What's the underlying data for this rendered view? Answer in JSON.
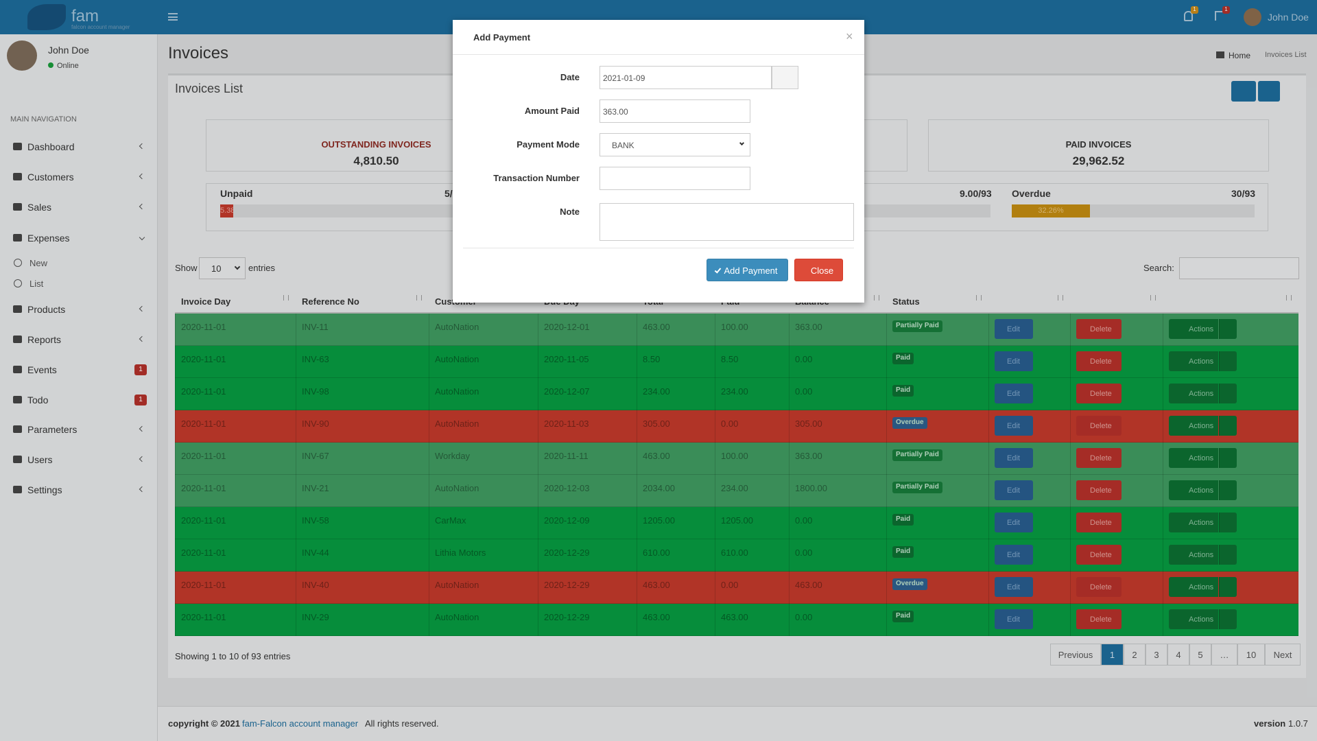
{
  "header": {
    "brand": "fam",
    "brand_sub": "falcon account manager",
    "notifications": "1",
    "flags": "1",
    "user": "John Doe"
  },
  "sidebar": {
    "user": "John Doe",
    "status": "Online",
    "section": "MAIN NAVIGATION",
    "items": [
      {
        "label": "Dashboard"
      },
      {
        "label": "Customers"
      },
      {
        "label": "Sales"
      },
      {
        "label": "Expenses",
        "children": [
          "New",
          "List"
        ]
      },
      {
        "label": "Products"
      },
      {
        "label": "Reports"
      },
      {
        "label": "Events",
        "badge": "1"
      },
      {
        "label": "Todo",
        "badge": "1"
      },
      {
        "label": "Parameters"
      },
      {
        "label": "Users"
      },
      {
        "label": "Settings"
      }
    ]
  },
  "page": {
    "title": "Invoices",
    "breadcrumb": [
      "Home",
      "Invoices List"
    ],
    "box_title": "Invoices List"
  },
  "stats": [
    {
      "label": "OUTSTANDING INVOICES",
      "value": "4,810.50",
      "color": "#8a2a22"
    },
    {
      "label": "PAID INVOICES",
      "value": "29,962.52",
      "color": "#333333"
    }
  ],
  "progress": [
    {
      "label": "Unpaid",
      "count": "5/",
      "bar": "5.38",
      "color": "#c0392b"
    },
    {
      "count": "9.00/93"
    },
    {
      "label": "Overdue",
      "count": "30/93",
      "bar": "32.26%",
      "color": "#c08a12"
    }
  ],
  "table_controls": {
    "show": "Show",
    "length": "10",
    "entries": "entries",
    "search": "Search:"
  },
  "table": {
    "headers": [
      "Invoice Day",
      "Reference No",
      "Customer",
      "Due Day",
      "Total",
      "Paid",
      "Balance",
      "Status"
    ],
    "buttons": {
      "edit": "Edit",
      "delete": "Delete",
      "actions": "Actions"
    },
    "rows": [
      {
        "color": "#3f9a60",
        "badge_color": "#177a3a",
        "cells": [
          "2020-11-01",
          "INV-11",
          "AutoNation",
          "2020-12-01",
          "463.00",
          "100.00",
          "363.00",
          "Partially Paid"
        ]
      },
      {
        "color": "#079a40",
        "badge_color": "#0d6e31",
        "cells": [
          "2020-11-01",
          "INV-63",
          "AutoNation",
          "2020-11-05",
          "8.50",
          "8.50",
          "0.00",
          "Paid"
        ]
      },
      {
        "color": "#079a40",
        "badge_color": "#0d6e31",
        "cells": [
          "2020-11-01",
          "INV-98",
          "AutoNation",
          "2020-12-07",
          "234.00",
          "234.00",
          "0.00",
          "Paid"
        ]
      },
      {
        "color": "#c0392b",
        "badge_color": "#2d5f8c",
        "cells": [
          "2020-11-01",
          "INV-90",
          "AutoNation",
          "2020-11-03",
          "305.00",
          "0.00",
          "305.00",
          "Overdue"
        ]
      },
      {
        "color": "#3f9a60",
        "badge_color": "#177a3a",
        "cells": [
          "2020-11-01",
          "INV-67",
          "Workday",
          "2020-11-11",
          "463.00",
          "100.00",
          "363.00",
          "Partially Paid"
        ]
      },
      {
        "color": "#3f9a60",
        "badge_color": "#177a3a",
        "cells": [
          "2020-11-01",
          "INV-21",
          "AutoNation",
          "2020-12-03",
          "2034.00",
          "234.00",
          "1800.00",
          "Partially Paid"
        ]
      },
      {
        "color": "#079a40",
        "badge_color": "#0d6e31",
        "cells": [
          "2020-11-01",
          "INV-58",
          "CarMax",
          "2020-12-09",
          "1205.00",
          "1205.00",
          "0.00",
          "Paid"
        ]
      },
      {
        "color": "#079a40",
        "badge_color": "#0d6e31",
        "cells": [
          "2020-11-01",
          "INV-44",
          "Lithia Motors",
          "2020-12-29",
          "610.00",
          "610.00",
          "0.00",
          "Paid"
        ]
      },
      {
        "color": "#c0392b",
        "badge_color": "#2d5f8c",
        "cells": [
          "2020-11-01",
          "INV-40",
          "AutoNation",
          "2020-12-29",
          "463.00",
          "0.00",
          "463.00",
          "Overdue"
        ]
      },
      {
        "color": "#079a40",
        "badge_color": "#0d6e31",
        "cells": [
          "2020-11-01",
          "INV-29",
          "AutoNation",
          "2020-12-29",
          "463.00",
          "463.00",
          "0.00",
          "Paid"
        ]
      }
    ]
  },
  "table_footer": {
    "info": "Showing 1 to 10 of 93 entries",
    "pages": [
      "Previous",
      "1",
      "2",
      "3",
      "4",
      "5",
      "…",
      "10",
      "Next"
    ]
  },
  "footer": {
    "copyright": "copyright © 2021",
    "link": "fam-Falcon account manager",
    "rights": "All rights reserved.",
    "version_label": "version",
    "version": "1.0.7"
  },
  "modal": {
    "title": "Add Payment",
    "close_x": "×",
    "fields": [
      {
        "label": "Date",
        "value": "2021-01-09"
      },
      {
        "label": "Amount Paid",
        "value": "363.00"
      },
      {
        "label": "Payment Mode",
        "value": "BANK"
      },
      {
        "label": "Transaction Number"
      },
      {
        "label": "Note"
      }
    ],
    "submit": "Add Payment",
    "close": "Close"
  }
}
